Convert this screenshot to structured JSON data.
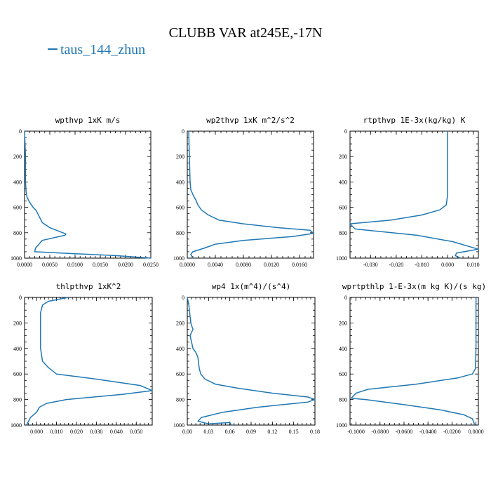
{
  "figure": {
    "title": "CLUBB VAR at245E,-17N",
    "legend": [
      {
        "label": "taus_144_zhun",
        "color": "#1f77b4"
      }
    ]
  },
  "chart_data": [
    {
      "type": "line",
      "title": "wpthvp  1xK m/s",
      "x_range": [
        0,
        0.025
      ],
      "y_range": [
        0,
        1000
      ],
      "y_inverted": true,
      "x_tick_labels": [
        "0.0000",
        "0.0050",
        "0.0100",
        "0.0150",
        "0.0200",
        "0.0250"
      ],
      "x_tick_values": [
        0,
        0.005,
        0.01,
        0.015,
        0.02,
        0.025
      ],
      "y_tick_labels": [
        "0",
        "200",
        "400",
        "600",
        "800",
        "1000"
      ],
      "y_tick_values": [
        0,
        200,
        400,
        600,
        800,
        1000
      ],
      "series": [
        {
          "x": [
            0.0,
            0.0001,
            0.0002,
            0.0002,
            0.0002,
            0.0003,
            0.0005,
            0.001,
            0.0017,
            0.0022,
            0.0025,
            0.003,
            0.0035,
            0.005,
            0.0082,
            0.008,
            0.0035,
            0.0022,
            0.002,
            0.01,
            0.018,
            0.025
          ],
          "y": [
            0,
            100,
            200,
            300,
            400,
            480,
            520,
            560,
            600,
            620,
            640,
            680,
            720,
            760,
            810,
            820,
            860,
            920,
            950,
            965,
            980,
            1000
          ]
        }
      ]
    },
    {
      "type": "line",
      "title": "wp2thvp  1xK m^2/s^2",
      "x_range": [
        0,
        0.018
      ],
      "y_range": [
        0,
        1000
      ],
      "y_inverted": true,
      "x_tick_labels": [
        "0.0000",
        "0.0040",
        "0.0080",
        "0.0120",
        "0.0160"
      ],
      "x_tick_values": [
        0,
        0.004,
        0.008,
        0.012,
        0.016
      ],
      "y_tick_labels": [
        "0",
        "200",
        "400",
        "600",
        "800",
        "1000"
      ],
      "y_tick_values": [
        0,
        200,
        400,
        600,
        800,
        1000
      ],
      "series": [
        {
          "x": [
            0.0002,
            0.0003,
            0.0004,
            0.0005,
            0.0008,
            0.0012,
            0.0015,
            0.002,
            0.003,
            0.0045,
            0.008,
            0.013,
            0.0175,
            0.018,
            0.015,
            0.008,
            0.004,
            0.0025,
            0.0008,
            0.0005,
            0.0008
          ],
          "y": [
            0,
            200,
            400,
            460,
            500,
            540,
            580,
            620,
            660,
            700,
            730,
            760,
            780,
            805,
            830,
            860,
            890,
            920,
            950,
            970,
            1000
          ]
        }
      ]
    },
    {
      "type": "line",
      "title": "rtpthvp  1E-3x(kg/kg) K",
      "x_range": [
        -0.038,
        0.012
      ],
      "y_range": [
        0,
        1000
      ],
      "y_inverted": true,
      "x_tick_labels": [
        "-0.030",
        "-0.020",
        "-0.010",
        "0.000",
        "0.010"
      ],
      "x_tick_values": [
        -0.03,
        -0.02,
        -0.01,
        0,
        0.01
      ],
      "y_tick_labels": [
        "0",
        "200",
        "400",
        "600",
        "800",
        "1000"
      ],
      "y_tick_values": [
        0,
        200,
        400,
        600,
        800,
        1000
      ],
      "series": [
        {
          "x": [
            0.0,
            0.0,
            0.0,
            -0.0005,
            -0.003,
            -0.01,
            -0.022,
            -0.038,
            -0.036,
            -0.012,
            0.002,
            0.012,
            0.0035,
            0.003,
            0.005
          ],
          "y": [
            0,
            200,
            500,
            580,
            620,
            660,
            700,
            730,
            770,
            820,
            870,
            930,
            960,
            980,
            1000
          ]
        }
      ]
    },
    {
      "type": "line",
      "title": "thlpthvp  1xK^2",
      "x_range": [
        -0.006,
        0.058
      ],
      "y_range": [
        0,
        1000
      ],
      "y_inverted": true,
      "x_tick_labels": [
        "0.000",
        "0.010",
        "0.020",
        "0.030",
        "0.040",
        "0.050"
      ],
      "x_tick_values": [
        0,
        0.01,
        0.02,
        0.03,
        0.04,
        0.05
      ],
      "y_tick_labels": [
        "0",
        "200",
        "400",
        "600",
        "800",
        "1000"
      ],
      "y_tick_values": [
        0,
        200,
        400,
        600,
        800,
        1000
      ],
      "series": [
        {
          "x": [
            0.016,
            0.006,
            0.003,
            0.002,
            0.002,
            0.002,
            0.002,
            0.003,
            0.006,
            0.01,
            0.03,
            0.052,
            0.058,
            0.043,
            0.015,
            0.005,
            0.0015,
            0.0,
            -0.003,
            -0.005
          ],
          "y": [
            0,
            30,
            60,
            120,
            200,
            300,
            400,
            500,
            550,
            600,
            640,
            690,
            730,
            760,
            800,
            830,
            860,
            900,
            940,
            1000
          ]
        }
      ]
    },
    {
      "type": "line",
      "title": "wp4  1x(m^4)/(s^4)",
      "x_range": [
        0,
        0.18
      ],
      "y_range": [
        0,
        1000
      ],
      "y_inverted": true,
      "x_tick_labels": [
        "0.00",
        "0.03",
        "0.06",
        "0.09",
        "0.12",
        "0.15",
        "0.18"
      ],
      "x_tick_values": [
        0,
        0.03,
        0.06,
        0.09,
        0.12,
        0.15,
        0.18
      ],
      "y_tick_labels": [
        "0",
        "200",
        "400",
        "600",
        "800",
        "1000"
      ],
      "y_tick_values": [
        0,
        200,
        400,
        600,
        800,
        1000
      ],
      "series": [
        {
          "x": [
            0.0,
            0.002,
            0.003,
            0.004,
            0.005,
            0.006,
            0.008,
            0.004,
            0.006,
            0.008,
            0.012,
            0.015,
            0.016,
            0.017,
            0.019,
            0.025,
            0.04,
            0.07,
            0.12,
            0.17,
            0.18,
            0.17,
            0.1,
            0.05,
            0.02,
            0.015,
            0.03,
            0.06,
            0.062
          ],
          "y": [
            0,
            50,
            100,
            150,
            200,
            220,
            250,
            300,
            350,
            400,
            430,
            470,
            520,
            560,
            600,
            640,
            680,
            710,
            750,
            780,
            800,
            820,
            860,
            900,
            940,
            970,
            990,
            980,
            1000
          ]
        }
      ]
    },
    {
      "type": "line",
      "title": "wprtpthlp  1-E-3x(m kg K)/(s kg)",
      "x_range": [
        -0.105,
        0.002
      ],
      "y_range": [
        0,
        1000
      ],
      "y_inverted": true,
      "x_tick_labels": [
        "-0.1000",
        "-0.0800",
        "-0.0600",
        "-0.0400",
        "-0.0200",
        "0.0000"
      ],
      "x_tick_values": [
        -0.1,
        -0.08,
        -0.06,
        -0.04,
        -0.02,
        0
      ],
      "y_tick_labels": [
        "0",
        "200",
        "400",
        "600",
        "800",
        "1000"
      ],
      "y_tick_values": [
        0,
        200,
        400,
        600,
        800,
        1000
      ],
      "series": [
        {
          "x": [
            0.0,
            0.0,
            0.0,
            -0.0005,
            -0.003,
            -0.015,
            -0.05,
            -0.09,
            -0.1,
            -0.104,
            -0.092,
            -0.06,
            -0.03,
            -0.01,
            -0.003,
            -0.001
          ],
          "y": [
            0,
            200,
            400,
            560,
            600,
            630,
            680,
            720,
            750,
            790,
            800,
            840,
            880,
            920,
            950,
            1000
          ]
        }
      ]
    }
  ]
}
